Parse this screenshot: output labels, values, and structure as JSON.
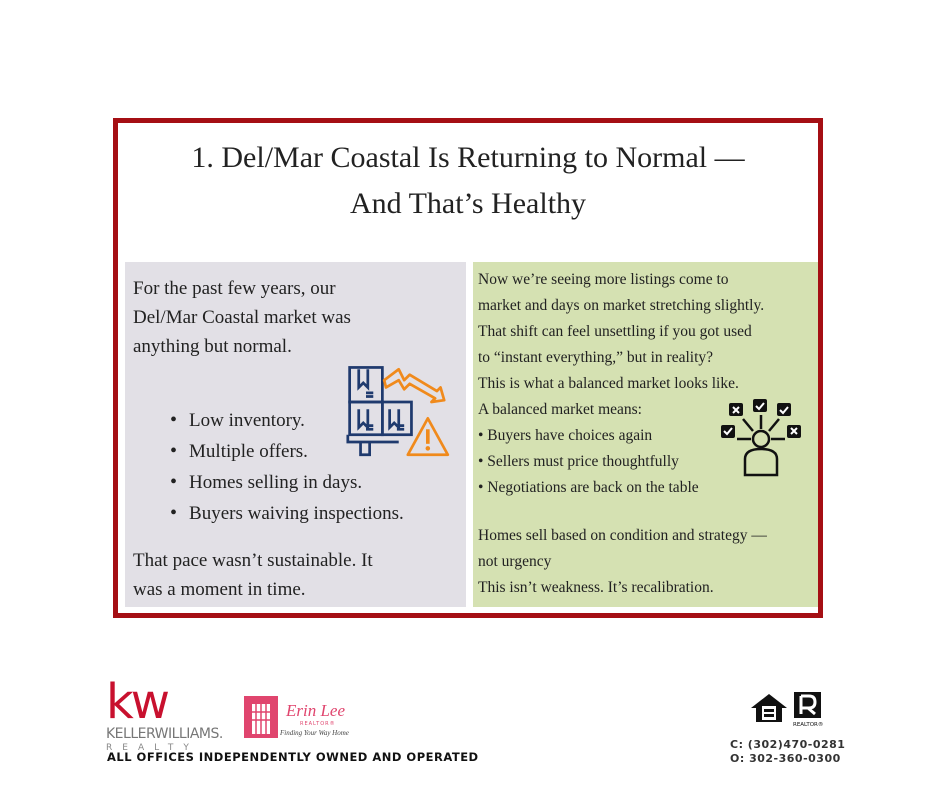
{
  "title": {
    "line1": "1. Del/Mar Coastal Is Returning to Normal —",
    "line2": "And That’s Healthy"
  },
  "left_panel": {
    "intro": [
      "For the past few years, our",
      "Del/Mar Coastal market was",
      "anything but normal."
    ],
    "bullets": [
      "Low inventory.",
      "Multiple offers.",
      "Homes selling in days.",
      "Buyers waiving inspections."
    ],
    "closing": [
      "That pace wasn’t sustainable. It",
      "was a moment in time."
    ],
    "icon": "inventory-decline-warning-icon",
    "colors": {
      "background": "#e2e0e6",
      "icon_blue": "#1f3a6e",
      "icon_orange": "#f08a1c"
    }
  },
  "right_panel": {
    "lines": [
      "Now we’re seeing more listings come to",
      "market and days on market stretching slightly.",
      "That shift can feel unsettling if you got used",
      "to “instant everything,” but in reality?",
      "This is what a balanced market looks like.",
      "A balanced market means:",
      "• Buyers have choices again",
      "• Sellers must price thoughtfully",
      "• Negotiations are back on the table"
    ],
    "closing": [
      "Homes sell based on condition and strategy —",
      "not urgency",
      "This isn’t weakness. It’s recalibration."
    ],
    "icon": "person-choices-icon",
    "colors": {
      "background": "#d5e1b2"
    }
  },
  "colors": {
    "frame_border": "#a50f14",
    "kw_red": "#c8102e",
    "erin_pink": "#e0456e"
  },
  "footer": {
    "kw_logo": {
      "mark": "kw",
      "name": "KELLERWILLIAMS.",
      "sub": "REALTY"
    },
    "erin_logo": {
      "name": "Erin Lee",
      "sub": "REALTOR®",
      "tagline": "Finding Your Way Home"
    },
    "tagline": "ALL OFFICES INDEPENDENTLY OWNED AND OPERATED",
    "badges": {
      "realtor": "REALTOR®"
    },
    "phone_cell": "C: (302)470-0281",
    "phone_office": "O: 302-360-0300"
  }
}
